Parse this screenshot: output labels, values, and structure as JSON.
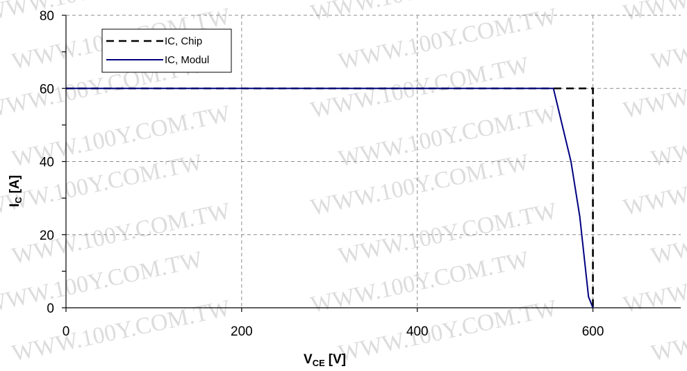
{
  "chart_data": {
    "type": "line",
    "xlabel": {
      "main": "V",
      "sub": "CE",
      "unit": "[V]"
    },
    "ylabel": {
      "main": "I",
      "sub": "C",
      "unit": "[A]"
    },
    "xlim": [
      0,
      700
    ],
    "ylim": [
      0,
      80
    ],
    "xticks": [
      0,
      200,
      400,
      600
    ],
    "yticks": [
      0,
      20,
      40,
      60,
      80
    ],
    "grid": true,
    "legend_position": "top-left",
    "series": [
      {
        "name": "IC, Chip",
        "style": "dashed",
        "color": "#000000",
        "x": [
          0,
          600,
          600
        ],
        "y": [
          60,
          60,
          0
        ]
      },
      {
        "name": "IC, Modul",
        "style": "solid",
        "color": "#000080",
        "x": [
          0,
          555,
          575,
          585,
          595,
          600
        ],
        "y": [
          60,
          60,
          40,
          25,
          3,
          0
        ]
      }
    ]
  },
  "watermark": "WWW.100Y.COM.TW"
}
